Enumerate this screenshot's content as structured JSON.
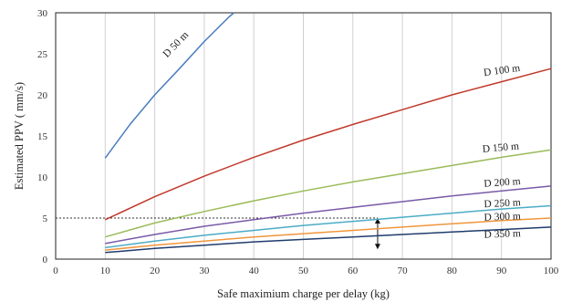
{
  "chart_data": {
    "type": "line",
    "xlabel": "Safe maximium  charge per delay (kg)",
    "ylabel": "Estimated  PPV ( mm/s)",
    "xlim": [
      0,
      100
    ],
    "ylim": [
      0,
      30
    ],
    "x_ticks": [
      0,
      10,
      20,
      30,
      40,
      50,
      60,
      70,
      80,
      90,
      100
    ],
    "y_ticks": [
      0,
      5,
      10,
      15,
      20,
      25,
      30
    ],
    "grid": "vertical",
    "legend": "none (series labelled inline)",
    "series": [
      {
        "name": "D 50 m",
        "color": "#4a7cc0",
        "x": [
          10,
          15,
          20,
          25,
          30,
          35,
          36
        ],
        "y": [
          12.3,
          16.4,
          20.0,
          23.2,
          26.5,
          29.5,
          30.0
        ]
      },
      {
        "name": "D 100 m",
        "color": "#c0392b",
        "x": [
          10,
          20,
          30,
          40,
          50,
          60,
          70,
          80,
          90,
          100
        ],
        "y": [
          4.8,
          7.6,
          10.1,
          12.4,
          14.5,
          16.4,
          18.2,
          20.0,
          21.6,
          23.2
        ]
      },
      {
        "name": "D 150 m",
        "color": "#9bbb59",
        "x": [
          10,
          20,
          30,
          40,
          50,
          60,
          70,
          80,
          90,
          100
        ],
        "y": [
          2.7,
          4.4,
          5.8,
          7.1,
          8.3,
          9.4,
          10.4,
          11.4,
          12.4,
          13.3
        ]
      },
      {
        "name": "D 200 m",
        "color": "#7a5aa8",
        "x": [
          10,
          20,
          30,
          40,
          50,
          60,
          70,
          80,
          90,
          100
        ],
        "y": [
          1.9,
          3.0,
          4.0,
          4.8,
          5.6,
          6.3,
          7.0,
          7.7,
          8.3,
          8.9
        ]
      },
      {
        "name": "D 250 m",
        "color": "#4bacc6",
        "x": [
          10,
          20,
          30,
          40,
          50,
          60,
          70,
          80,
          90,
          100
        ],
        "y": [
          1.4,
          2.2,
          2.9,
          3.5,
          4.1,
          4.6,
          5.1,
          5.6,
          6.1,
          6.5
        ]
      },
      {
        "name": "D 300 m",
        "color": "#f0963c",
        "x": [
          10,
          20,
          30,
          40,
          50,
          60,
          70,
          80,
          90,
          100
        ],
        "y": [
          1.1,
          1.7,
          2.2,
          2.7,
          3.1,
          3.5,
          3.9,
          4.3,
          4.7,
          5.0
        ]
      },
      {
        "name": "D 350 m",
        "color": "#1f3c6e",
        "x": [
          10,
          20,
          30,
          40,
          50,
          60,
          70,
          80,
          90,
          100
        ],
        "y": [
          0.8,
          1.3,
          1.7,
          2.1,
          2.4,
          2.7,
          3.0,
          3.3,
          3.6,
          3.9
        ]
      }
    ],
    "annotations": {
      "threshold_y": 5,
      "threshold_x_end": 65,
      "arrow_x": 65,
      "arrow_y_from": 5,
      "arrow_y_to": 1.2
    }
  }
}
